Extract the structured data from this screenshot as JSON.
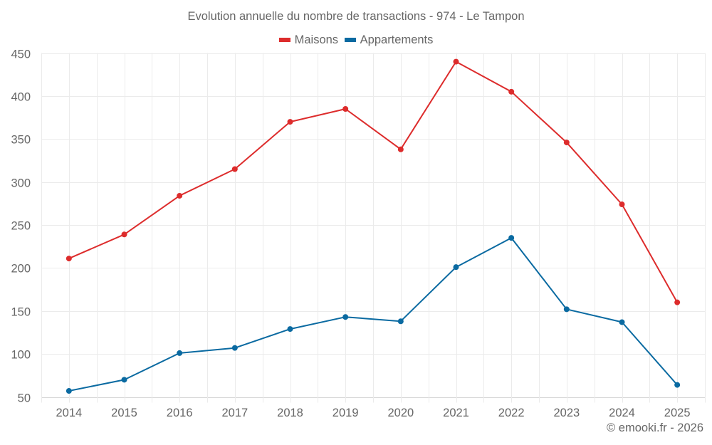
{
  "chart_data": {
    "type": "line",
    "title": "Evolution annuelle du nombre de transactions - 974 - Le Tampon",
    "xlabel": "",
    "ylabel": "",
    "categories": [
      "2014",
      "2015",
      "2016",
      "2017",
      "2018",
      "2019",
      "2020",
      "2021",
      "2022",
      "2023",
      "2024",
      "2025"
    ],
    "series": [
      {
        "name": "Maisons",
        "color": "#dd2c2c",
        "values": [
          211,
          239,
          284,
          315,
          370,
          385,
          338,
          440,
          405,
          346,
          274,
          160
        ]
      },
      {
        "name": "Appartements",
        "color": "#0a6aa1",
        "values": [
          57,
          70,
          101,
          107,
          129,
          143,
          138,
          201,
          235,
          152,
          137,
          64
        ]
      }
    ],
    "ylim": [
      50,
      450
    ],
    "yticks": [
      50,
      100,
      150,
      200,
      250,
      300,
      350,
      400,
      450
    ],
    "grid": true,
    "legend_position": "top-center",
    "markers": true
  },
  "credit": "© emooki.fr - 2026"
}
